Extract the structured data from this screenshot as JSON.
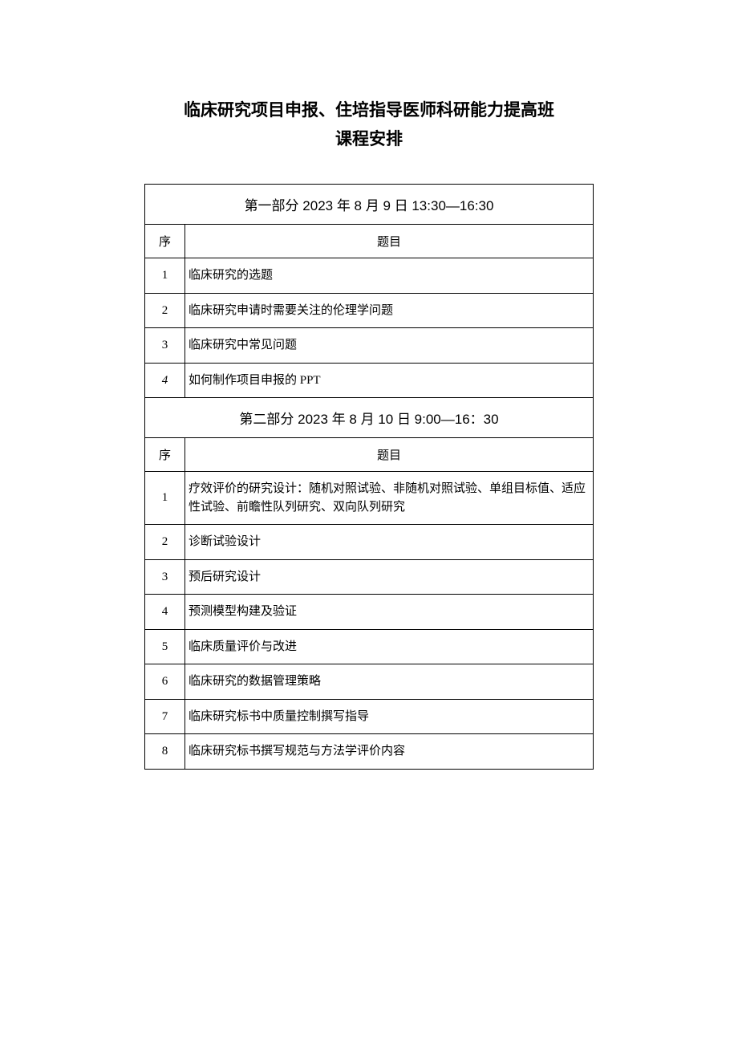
{
  "title": {
    "line1": "临床研究项目申报、住培指导医师科研能力提高班",
    "line2": "课程安排"
  },
  "part1": {
    "header": "第一部分 2023 年 8 月 9 日 13:30—16:30",
    "column_seq": "序",
    "column_topic": "题目",
    "rows": [
      {
        "seq": "1",
        "topic": "临床研究的选题"
      },
      {
        "seq": "2",
        "topic": "临床研究申请时需要关注的伦理学问题"
      },
      {
        "seq": "3",
        "topic": "临床研究中常见问题"
      },
      {
        "seq": "4",
        "topic": "如何制作项目申报的 PPT",
        "italic": true
      }
    ]
  },
  "part2": {
    "header": "第二部分 2023 年 8 月 10 日 9:00—16：30",
    "column_seq": "序",
    "column_topic": "题目",
    "rows": [
      {
        "seq": "1",
        "topic": "疗效评价的研究设计：随机对照试验、非随机对照试验、单组目标值、适应性试验、前瞻性队列研究、双向队列研究"
      },
      {
        "seq": "2",
        "topic": "诊断试验设计"
      },
      {
        "seq": "3",
        "topic": "预后研究设计"
      },
      {
        "seq": "4",
        "topic": "预测模型构建及验证"
      },
      {
        "seq": "5",
        "topic": "临床质量评价与改进"
      },
      {
        "seq": "6",
        "topic": "临床研究的数据管理策略"
      },
      {
        "seq": "7",
        "topic": "临床研究标书中质量控制撰写指导"
      },
      {
        "seq": "8",
        "topic": "临床研究标书撰写规范与方法学评价内容"
      }
    ]
  },
  "colors": {
    "background": "#ffffff",
    "text": "#000000",
    "border": "#000000"
  }
}
